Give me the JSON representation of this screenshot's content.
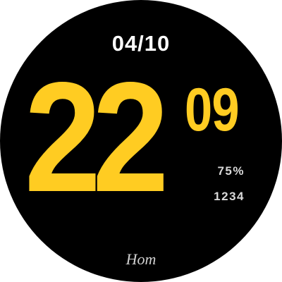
{
  "watch": {
    "date": "04/10",
    "hours": "22",
    "minutes": "09",
    "battery": "75%",
    "steps": "1234",
    "bottom_label": "Hom"
  },
  "colors": {
    "face_background": "#000000",
    "time_accent": "#FFCC22",
    "date_text": "#FFFFFF",
    "stat_text": "#D9D9D9"
  }
}
